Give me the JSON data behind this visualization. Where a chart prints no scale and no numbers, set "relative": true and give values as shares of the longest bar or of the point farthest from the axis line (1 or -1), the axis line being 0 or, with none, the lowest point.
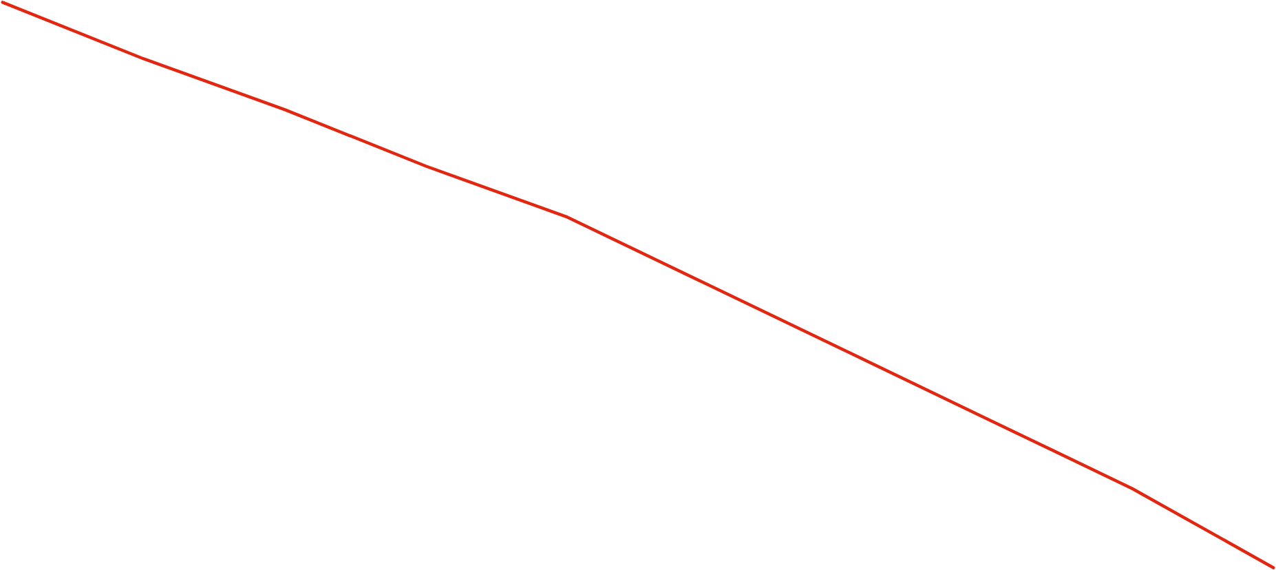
{
  "chart_data": {
    "type": "line",
    "relative": true,
    "categories": [
      null,
      null,
      null,
      null,
      null,
      null,
      null,
      null,
      null,
      null
    ],
    "series": [
      {
        "color": "#e3260f",
        "values": [
          1.0,
          0.9,
          0.81,
          0.71,
          0.62,
          0.5,
          0.38,
          0.26,
          0.14,
          0.0
        ]
      }
    ]
  }
}
